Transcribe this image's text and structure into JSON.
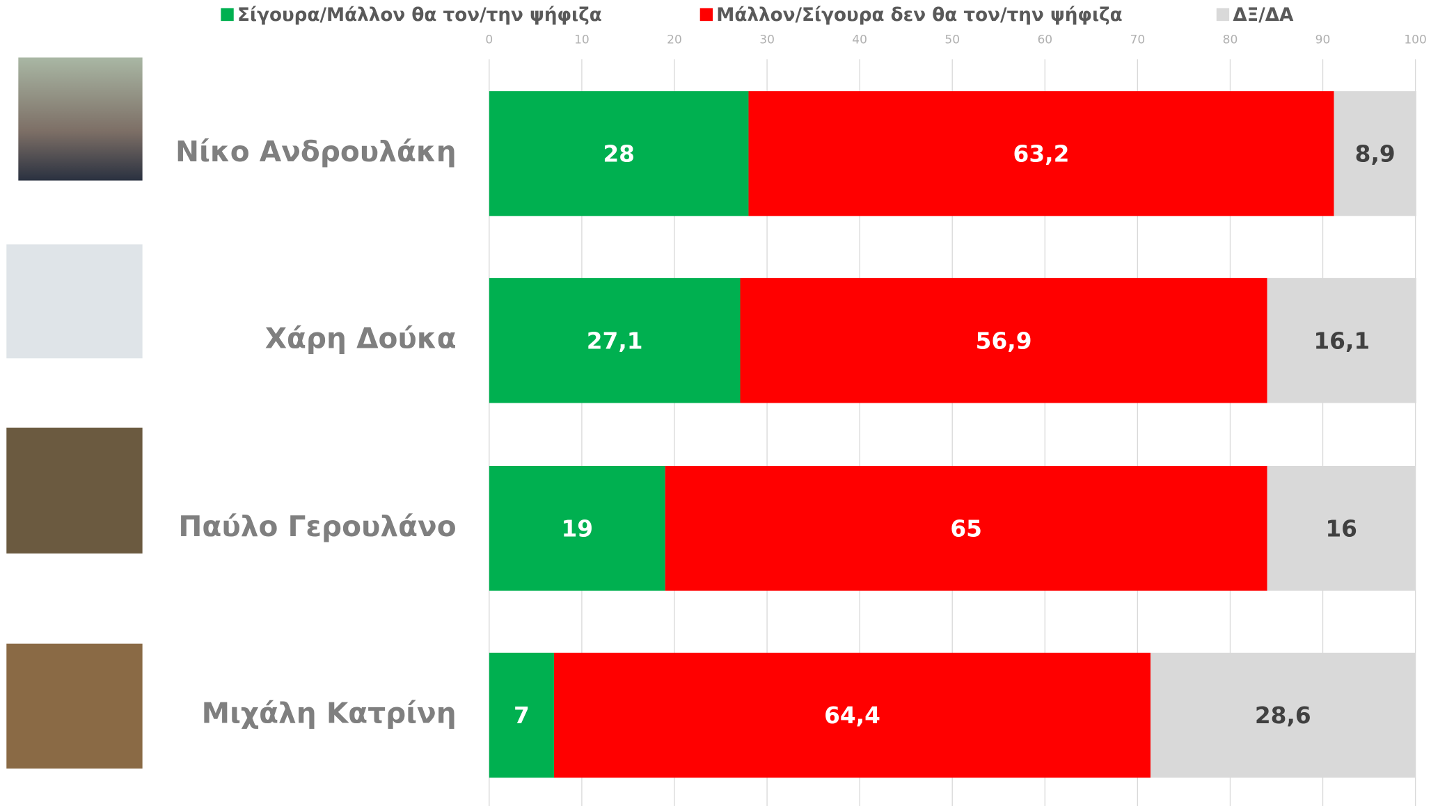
{
  "chart_data": {
    "type": "stacked-bar-horizontal",
    "categories": [
      "Νίκο Ανδρουλάκη",
      "Χάρη Δούκα",
      "Παύλο Γερουλάνο",
      "Μιχάλη Κατρίνη"
    ],
    "series": [
      {
        "name": "Σίγουρα/Μάλλον θα τον/την ψήφιζα",
        "color": "#00b050",
        "values": [
          28,
          27.1,
          19,
          7
        ],
        "value_labels": [
          "28",
          "27,1",
          "19",
          "7"
        ]
      },
      {
        "name": "Μάλλον/Σίγουρα δεν θα τον/την ψήφιζα",
        "color": "#ff0000",
        "values": [
          63.2,
          56.9,
          65,
          64.4
        ],
        "value_labels": [
          "63,2",
          "56,9",
          "65",
          "64,4"
        ]
      },
      {
        "name": "ΔΞ/ΔΑ",
        "color": "#d9d9d9",
        "values": [
          8.9,
          16.1,
          16,
          28.6
        ],
        "value_labels": [
          "8,9",
          "16,1",
          "16",
          "28,6"
        ]
      }
    ],
    "xlim": [
      0,
      100
    ],
    "xticks": [
      0,
      10,
      20,
      30,
      40,
      50,
      60,
      70,
      80,
      90,
      100
    ],
    "grid": true
  }
}
